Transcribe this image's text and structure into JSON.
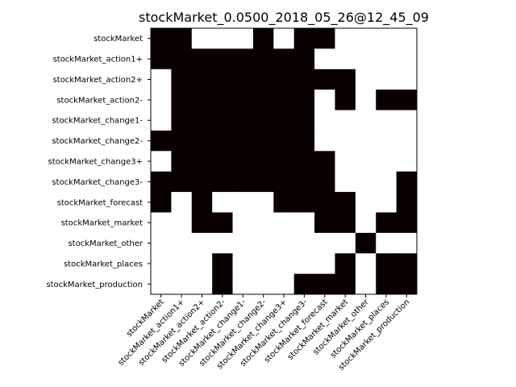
{
  "chart_data": {
    "type": "heatmap",
    "title": "stockMarket_0.0500_2018_05_26@12_45_09",
    "xlabel": "",
    "ylabel": "",
    "labels": [
      "stockMarket",
      "stockMarket_action1+",
      "stockMarket_action2+",
      "stockMarket_action2-",
      "stockMarket_change1-",
      "stockMarket_change2-",
      "stockMarket_change3+",
      "stockMarket_change3-",
      "stockMarket_forecast",
      "stockMarket_market",
      "stockMarket_other",
      "stockMarket_places",
      "stockMarket_production"
    ],
    "matrix": [
      [
        1,
        1,
        0,
        0,
        0,
        1,
        0,
        1,
        1,
        0,
        0,
        0,
        0
      ],
      [
        1,
        1,
        1,
        1,
        1,
        1,
        1,
        1,
        0,
        0,
        0,
        0,
        0
      ],
      [
        0,
        1,
        1,
        1,
        1,
        1,
        1,
        1,
        1,
        1,
        0,
        0,
        0
      ],
      [
        0,
        1,
        1,
        1,
        1,
        1,
        1,
        1,
        0,
        1,
        0,
        1,
        1
      ],
      [
        0,
        1,
        1,
        1,
        1,
        1,
        1,
        1,
        0,
        0,
        0,
        0,
        0
      ],
      [
        1,
        1,
        1,
        1,
        1,
        1,
        1,
        1,
        0,
        0,
        0,
        0,
        0
      ],
      [
        0,
        1,
        1,
        1,
        1,
        1,
        1,
        1,
        1,
        0,
        0,
        0,
        0
      ],
      [
        1,
        1,
        1,
        1,
        1,
        1,
        1,
        1,
        1,
        0,
        0,
        0,
        1
      ],
      [
        1,
        0,
        1,
        0,
        0,
        0,
        1,
        1,
        1,
        1,
        0,
        0,
        1
      ],
      [
        0,
        0,
        1,
        1,
        0,
        0,
        0,
        0,
        1,
        1,
        0,
        1,
        1
      ],
      [
        0,
        0,
        0,
        0,
        0,
        0,
        0,
        0,
        0,
        0,
        1,
        0,
        0
      ],
      [
        0,
        0,
        0,
        1,
        0,
        0,
        0,
        0,
        0,
        1,
        0,
        1,
        1
      ],
      [
        0,
        0,
        0,
        1,
        0,
        0,
        0,
        1,
        1,
        1,
        0,
        1,
        1
      ]
    ],
    "colors": {
      "filled": "#0a0000",
      "empty": "#ffffff"
    },
    "grid": false,
    "legend": "none"
  }
}
